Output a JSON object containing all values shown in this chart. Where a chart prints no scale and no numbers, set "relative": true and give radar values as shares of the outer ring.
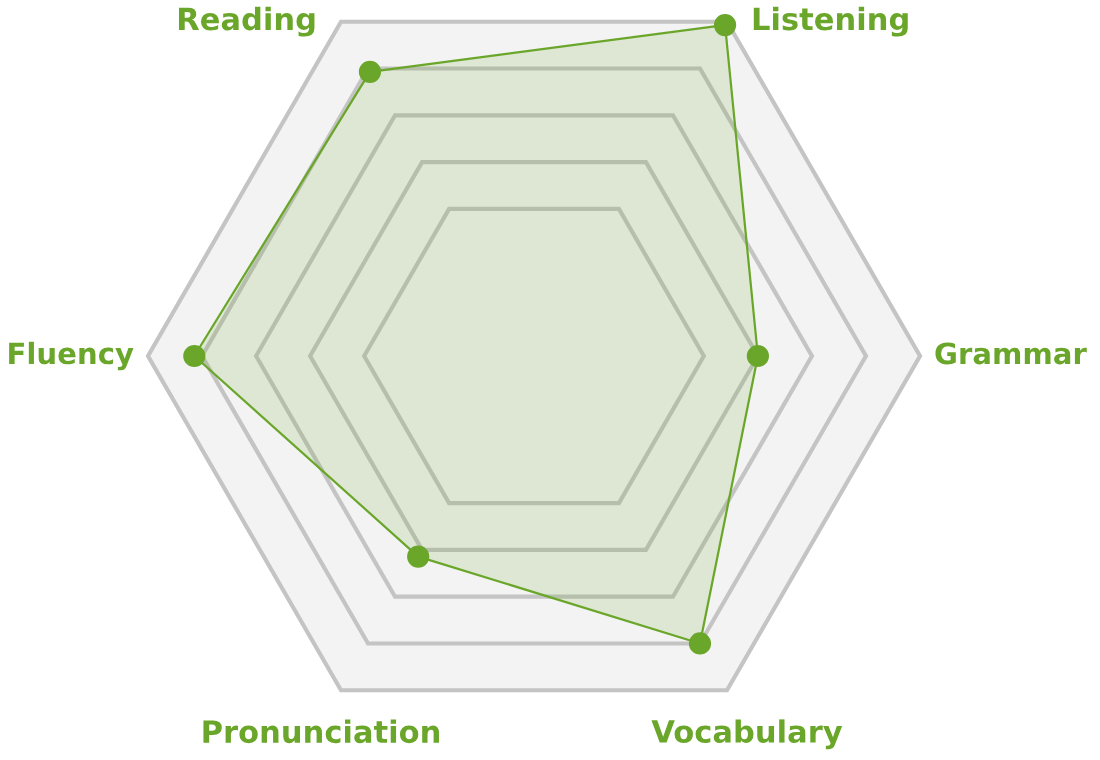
{
  "chart_data": {
    "type": "radar",
    "relative": true,
    "categories": [
      "Listening",
      "Grammar",
      "Vocabulary",
      "Pronunciation",
      "Fluency",
      "Reading"
    ],
    "series": [
      {
        "color": "#6aa629",
        "values": [
          0.99,
          0.58,
          0.86,
          0.6,
          0.88,
          0.85
        ]
      }
    ],
    "marker": "circle",
    "grid": true
  }
}
